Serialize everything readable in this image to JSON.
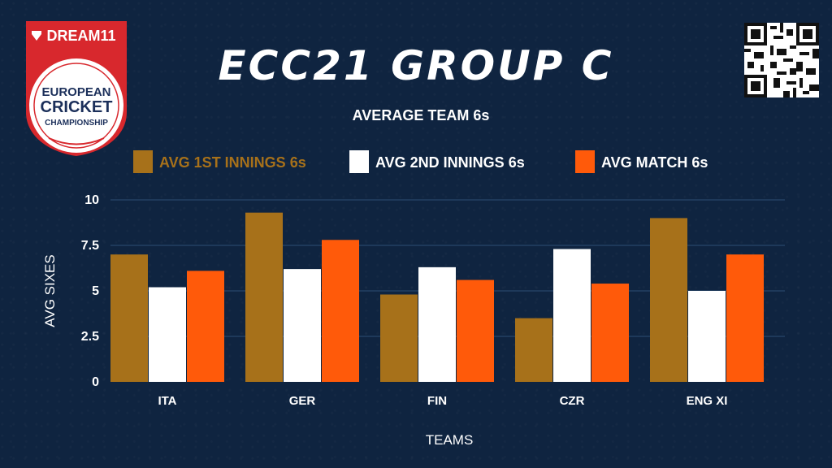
{
  "logo": {
    "brand": "DREAM11",
    "line1": "EUROPEAN",
    "line2": "CRICKET",
    "line3": "CHAMPIONSHIP"
  },
  "colors": {
    "background": "#0f2440",
    "series1": "#a7711a",
    "series2": "#ffffff",
    "series3": "#ff5a0a",
    "gridline": "#2c4e73"
  },
  "chart_data": {
    "type": "bar",
    "title": "ECC21 GROUP C",
    "subtitle": "AVERAGE TEAM 6s",
    "xlabel": "TEAMS",
    "ylabel": "AVG SIXES",
    "categories": [
      "ITA",
      "GER",
      "FIN",
      "CZR",
      "ENG XI"
    ],
    "series": [
      {
        "name": "AVG 1ST INNINGS 6s",
        "values": [
          7.0,
          9.3,
          4.8,
          3.5,
          9.0
        ]
      },
      {
        "name": "AVG 2ND INNINGS 6s",
        "values": [
          5.2,
          6.2,
          6.3,
          7.3,
          5.0
        ]
      },
      {
        "name": "AVG MATCH 6s",
        "values": [
          6.1,
          7.8,
          5.6,
          5.4,
          7.0
        ]
      }
    ],
    "yticks": [
      "0",
      "2.5",
      "5",
      "7.5",
      "10"
    ],
    "ylim": [
      0,
      10
    ],
    "grid": true,
    "legend_position": "top"
  }
}
